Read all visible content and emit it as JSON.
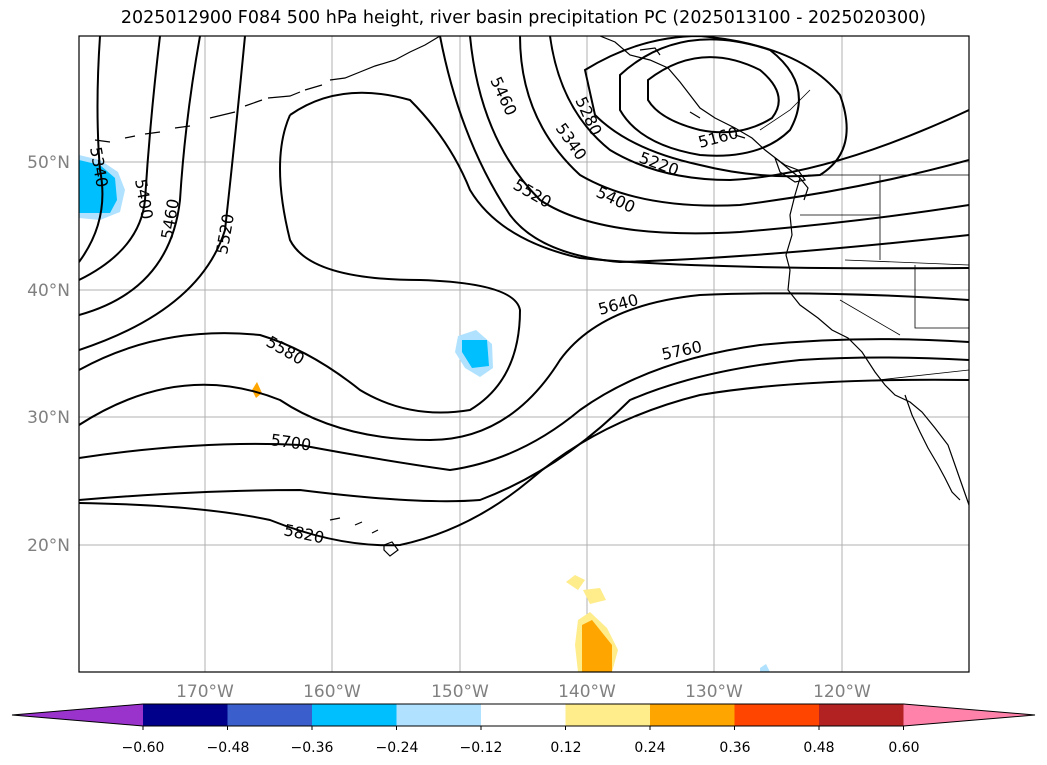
{
  "title": "2025012900 F084 500 hPa height, river basin precipitation PC (2025013100 - 2025020300)",
  "map": {
    "lat_labels": [
      "50°N",
      "40°N",
      "30°N",
      "20°N"
    ],
    "lon_labels": [
      "170°W",
      "160°W",
      "150°W",
      "140°W",
      "130°W",
      "120°W"
    ],
    "contour_labels": [
      "5340",
      "5400",
      "5460",
      "5520",
      "5460",
      "5280",
      "5340",
      "5160",
      "5220",
      "5520",
      "5400",
      "5640",
      "5580",
      "5760",
      "5700",
      "5820"
    ],
    "contour_color": "#000000",
    "grid_color": "#b0b0b0",
    "coast_color": "#000000"
  },
  "colorbar": {
    "extend": "both",
    "colors": [
      "#9933cc",
      "#00008b",
      "#3a5fcd",
      "#00bfff",
      "#b0e2ff",
      "#ffffff",
      "#ffec8b",
      "#ffa500",
      "#ff4500",
      "#b22222",
      "#ff82ab"
    ],
    "tick_labels": [
      "−0.60",
      "−0.48",
      "−0.36",
      "−0.24",
      "−0.12",
      "0.12",
      "0.24",
      "0.36",
      "0.48",
      "0.60"
    ]
  }
}
